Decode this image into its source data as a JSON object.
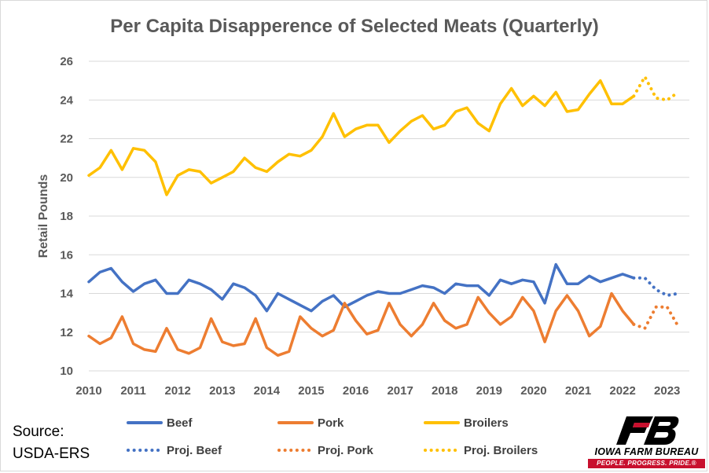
{
  "chart_data": {
    "type": "line",
    "title": "Per Capita Disapperence of Selected Meats (Quarterly)",
    "ylabel": "Retail Pounds",
    "xlabel": "",
    "ylim": [
      10,
      26
    ],
    "yticks": [
      "10",
      "12",
      "14",
      "16",
      "18",
      "20",
      "22",
      "24",
      "26"
    ],
    "xlim": [
      2010,
      2023.5
    ],
    "xticks": [
      "2010",
      "2011",
      "2012",
      "2013",
      "2014",
      "2015",
      "2016",
      "2017",
      "2018",
      "2019",
      "2020",
      "2021",
      "2022",
      "2023"
    ],
    "grid": "horizontal",
    "legend_position": "bottom",
    "series": [
      {
        "name": "Beef",
        "color": "#4472C4",
        "style": "solid",
        "x_start": 2010.0,
        "step": 0.25,
        "values": [
          14.6,
          15.1,
          15.3,
          14.6,
          14.1,
          14.5,
          14.7,
          14.0,
          14.0,
          14.7,
          14.5,
          14.2,
          13.7,
          14.5,
          14.3,
          13.9,
          13.1,
          14.0,
          13.7,
          13.4,
          13.1,
          13.6,
          13.9,
          13.3,
          13.6,
          13.9,
          14.1,
          14.0,
          14.0,
          14.2,
          14.4,
          14.3,
          14.0,
          14.5,
          14.4,
          14.4,
          13.9,
          14.7,
          14.5,
          14.7,
          14.6,
          13.5,
          15.5,
          14.5,
          14.5,
          14.9,
          14.6,
          14.8,
          15.0,
          14.8
        ]
      },
      {
        "name": "Pork",
        "color": "#ED7D31",
        "style": "solid",
        "x_start": 2010.0,
        "step": 0.25,
        "values": [
          11.8,
          11.4,
          11.7,
          12.8,
          11.4,
          11.1,
          11.0,
          12.2,
          11.1,
          10.9,
          11.2,
          12.7,
          11.5,
          11.3,
          11.4,
          12.7,
          11.2,
          10.8,
          11.0,
          12.8,
          12.2,
          11.8,
          12.1,
          13.5,
          12.6,
          11.9,
          12.1,
          13.5,
          12.4,
          11.8,
          12.4,
          13.5,
          12.6,
          12.2,
          12.4,
          13.8,
          13.0,
          12.4,
          12.8,
          13.8,
          13.1,
          11.5,
          13.1,
          13.9,
          13.1,
          11.8,
          12.3,
          14.0,
          13.1,
          12.4
        ]
      },
      {
        "name": "Broilers",
        "color": "#FFC000",
        "style": "solid",
        "x_start": 2010.0,
        "step": 0.25,
        "values": [
          20.1,
          20.5,
          21.4,
          20.4,
          21.5,
          21.4,
          20.8,
          19.1,
          20.1,
          20.4,
          20.3,
          19.7,
          20.0,
          20.3,
          21.0,
          20.5,
          20.3,
          20.8,
          21.2,
          21.1,
          21.4,
          22.1,
          23.3,
          22.1,
          22.5,
          22.7,
          22.7,
          21.8,
          22.4,
          22.9,
          23.2,
          22.5,
          22.7,
          23.4,
          23.6,
          22.8,
          22.4,
          23.8,
          24.6,
          23.7,
          24.2,
          23.7,
          24.4,
          23.4,
          23.5,
          24.3,
          25.0,
          23.8,
          23.8,
          24.2
        ]
      },
      {
        "name": "Proj. Beef",
        "color": "#4472C4",
        "style": "dotted",
        "x_start": 2022.25,
        "step": 0.25,
        "values": [
          14.8,
          14.8,
          14.2,
          13.9,
          14.0
        ]
      },
      {
        "name": "Proj. Pork",
        "color": "#ED7D31",
        "style": "dotted",
        "x_start": 2022.25,
        "step": 0.25,
        "values": [
          12.4,
          12.2,
          13.3,
          13.3,
          12.3
        ]
      },
      {
        "name": "Proj. Broilers",
        "color": "#FFC000",
        "style": "dotted",
        "x_start": 2022.25,
        "step": 0.25,
        "values": [
          24.2,
          25.2,
          24.1,
          24.0,
          24.4
        ]
      }
    ]
  },
  "source": {
    "line1": "Source:",
    "line2": "USDA-ERS"
  },
  "logo": {
    "name": "IOWA FARM BUREAU",
    "tagline": "PEOPLE. PROGRESS. PRIDE.®",
    "mark_color": "#000000",
    "accent_color": "#C8102E"
  }
}
